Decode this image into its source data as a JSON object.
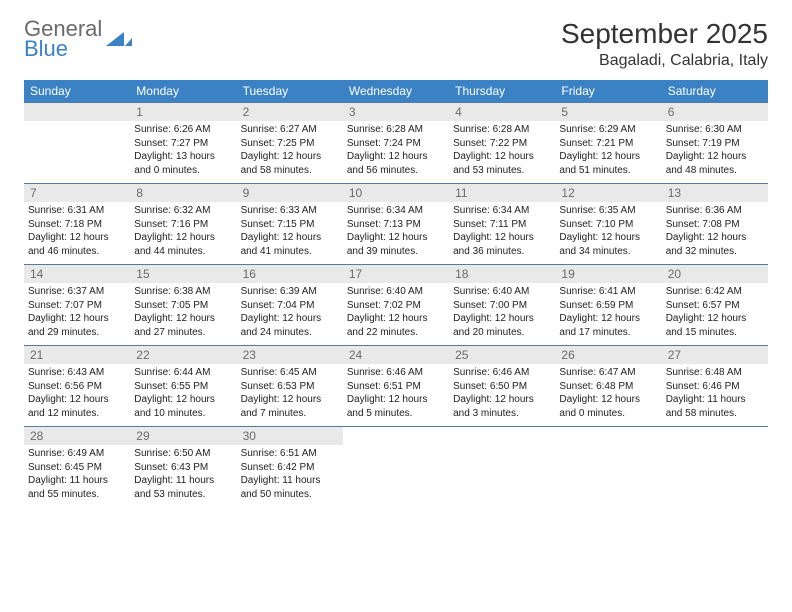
{
  "logo": {
    "word1": "General",
    "word2": "Blue",
    "mark_color": "#3b82c4"
  },
  "header": {
    "month_title": "September 2025",
    "location": "Bagaladi, Calabria, Italy"
  },
  "style": {
    "header_bg": "#3b82c4",
    "header_text": "#ffffff",
    "daynum_bg": "#e9e9e9",
    "daynum_text": "#6b6b6b",
    "cell_text": "#222222",
    "divider": "#5a7a99"
  },
  "weekdays": [
    "Sunday",
    "Monday",
    "Tuesday",
    "Wednesday",
    "Thursday",
    "Friday",
    "Saturday"
  ],
  "weeks": [
    [
      null,
      {
        "n": "1",
        "sr": "6:26 AM",
        "ss": "7:27 PM",
        "dl": "13 hours and 0 minutes."
      },
      {
        "n": "2",
        "sr": "6:27 AM",
        "ss": "7:25 PM",
        "dl": "12 hours and 58 minutes."
      },
      {
        "n": "3",
        "sr": "6:28 AM",
        "ss": "7:24 PM",
        "dl": "12 hours and 56 minutes."
      },
      {
        "n": "4",
        "sr": "6:28 AM",
        "ss": "7:22 PM",
        "dl": "12 hours and 53 minutes."
      },
      {
        "n": "5",
        "sr": "6:29 AM",
        "ss": "7:21 PM",
        "dl": "12 hours and 51 minutes."
      },
      {
        "n": "6",
        "sr": "6:30 AM",
        "ss": "7:19 PM",
        "dl": "12 hours and 48 minutes."
      }
    ],
    [
      {
        "n": "7",
        "sr": "6:31 AM",
        "ss": "7:18 PM",
        "dl": "12 hours and 46 minutes."
      },
      {
        "n": "8",
        "sr": "6:32 AM",
        "ss": "7:16 PM",
        "dl": "12 hours and 44 minutes."
      },
      {
        "n": "9",
        "sr": "6:33 AM",
        "ss": "7:15 PM",
        "dl": "12 hours and 41 minutes."
      },
      {
        "n": "10",
        "sr": "6:34 AM",
        "ss": "7:13 PM",
        "dl": "12 hours and 39 minutes."
      },
      {
        "n": "11",
        "sr": "6:34 AM",
        "ss": "7:11 PM",
        "dl": "12 hours and 36 minutes."
      },
      {
        "n": "12",
        "sr": "6:35 AM",
        "ss": "7:10 PM",
        "dl": "12 hours and 34 minutes."
      },
      {
        "n": "13",
        "sr": "6:36 AM",
        "ss": "7:08 PM",
        "dl": "12 hours and 32 minutes."
      }
    ],
    [
      {
        "n": "14",
        "sr": "6:37 AM",
        "ss": "7:07 PM",
        "dl": "12 hours and 29 minutes."
      },
      {
        "n": "15",
        "sr": "6:38 AM",
        "ss": "7:05 PM",
        "dl": "12 hours and 27 minutes."
      },
      {
        "n": "16",
        "sr": "6:39 AM",
        "ss": "7:04 PM",
        "dl": "12 hours and 24 minutes."
      },
      {
        "n": "17",
        "sr": "6:40 AM",
        "ss": "7:02 PM",
        "dl": "12 hours and 22 minutes."
      },
      {
        "n": "18",
        "sr": "6:40 AM",
        "ss": "7:00 PM",
        "dl": "12 hours and 20 minutes."
      },
      {
        "n": "19",
        "sr": "6:41 AM",
        "ss": "6:59 PM",
        "dl": "12 hours and 17 minutes."
      },
      {
        "n": "20",
        "sr": "6:42 AM",
        "ss": "6:57 PM",
        "dl": "12 hours and 15 minutes."
      }
    ],
    [
      {
        "n": "21",
        "sr": "6:43 AM",
        "ss": "6:56 PM",
        "dl": "12 hours and 12 minutes."
      },
      {
        "n": "22",
        "sr": "6:44 AM",
        "ss": "6:55 PM",
        "dl": "12 hours and 10 minutes."
      },
      {
        "n": "23",
        "sr": "6:45 AM",
        "ss": "6:53 PM",
        "dl": "12 hours and 7 minutes."
      },
      {
        "n": "24",
        "sr": "6:46 AM",
        "ss": "6:51 PM",
        "dl": "12 hours and 5 minutes."
      },
      {
        "n": "25",
        "sr": "6:46 AM",
        "ss": "6:50 PM",
        "dl": "12 hours and 3 minutes."
      },
      {
        "n": "26",
        "sr": "6:47 AM",
        "ss": "6:48 PM",
        "dl": "12 hours and 0 minutes."
      },
      {
        "n": "27",
        "sr": "6:48 AM",
        "ss": "6:46 PM",
        "dl": "11 hours and 58 minutes."
      }
    ],
    [
      {
        "n": "28",
        "sr": "6:49 AM",
        "ss": "6:45 PM",
        "dl": "11 hours and 55 minutes."
      },
      {
        "n": "29",
        "sr": "6:50 AM",
        "ss": "6:43 PM",
        "dl": "11 hours and 53 minutes."
      },
      {
        "n": "30",
        "sr": "6:51 AM",
        "ss": "6:42 PM",
        "dl": "11 hours and 50 minutes."
      },
      null,
      null,
      null,
      null
    ]
  ],
  "labels": {
    "sunrise": "Sunrise:",
    "sunset": "Sunset:",
    "daylight": "Daylight:"
  }
}
